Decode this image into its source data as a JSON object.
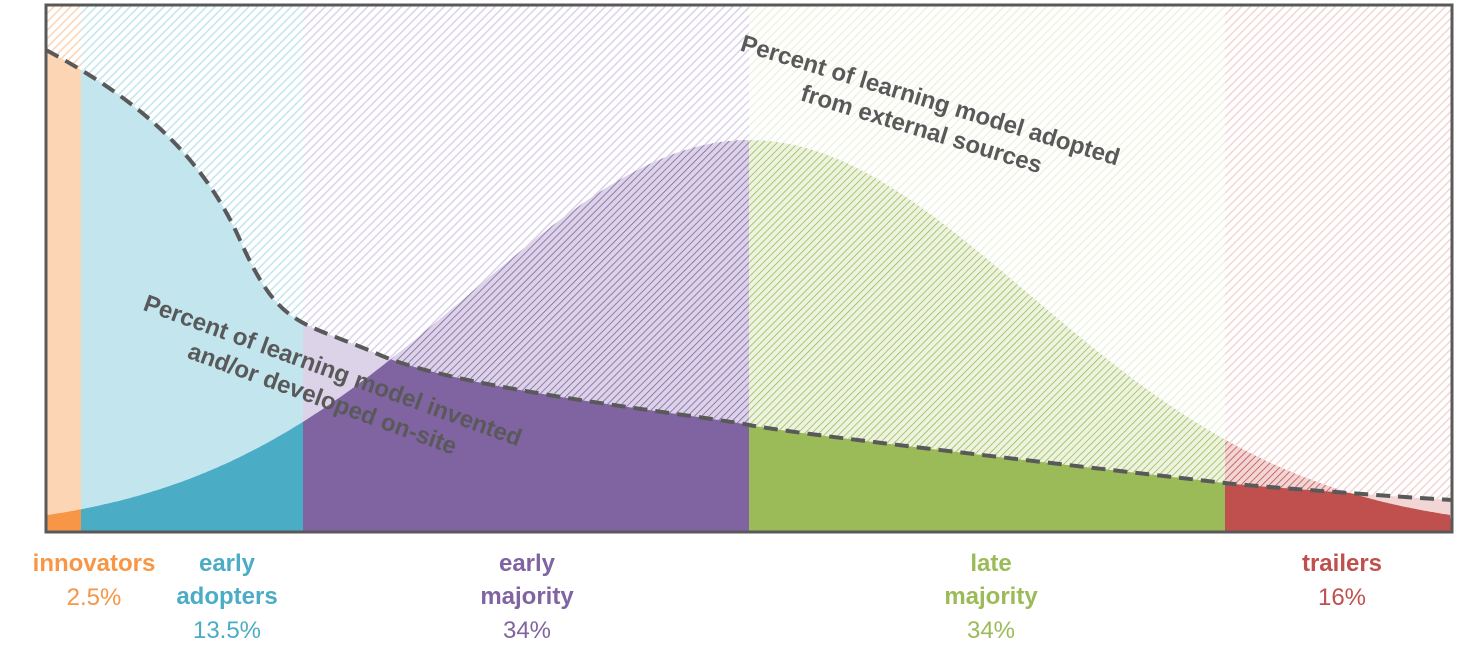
{
  "segments": [
    {
      "label_lines": [
        "innovators"
      ],
      "share": "2.5%",
      "color": "#f79646",
      "light": "#fcd5b5"
    },
    {
      "label_lines": [
        "early",
        "adopters"
      ],
      "share": "13.5%",
      "color": "#4bacc6",
      "light": "#c2e5ee"
    },
    {
      "label_lines": [
        "early",
        "majority"
      ],
      "share": "34%",
      "color": "#8064a2",
      "light": "#dcd3e8"
    },
    {
      "label_lines": [
        "late",
        "majority"
      ],
      "share": "34%",
      "color": "#9bbb59",
      "light": "#edf3df"
    },
    {
      "label_lines": [
        "trailers"
      ],
      "share": "16%",
      "color": "#c0504d",
      "light": "#f2d6d5"
    }
  ],
  "annotations": [
    {
      "lines": [
        "Percent of learning model adopted",
        "from external sources"
      ]
    },
    {
      "lines": [
        "Percent of learning model invented",
        "and/or developed on-site"
      ]
    }
  ]
}
